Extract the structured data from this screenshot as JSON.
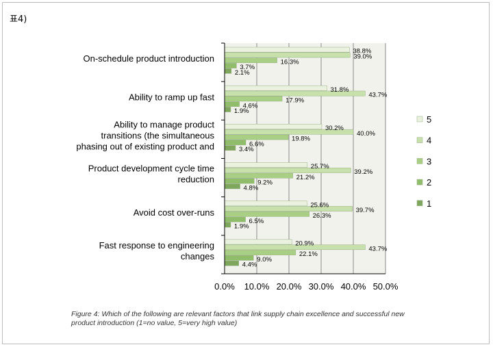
{
  "page": {
    "header_label": "표4)"
  },
  "figure": {
    "caption": "Figure 4: Which of the following are relevant factors that link supply chain excellence and successful new product introduction (1=no value, 5=very high value)"
  },
  "chart_data": {
    "type": "bar",
    "orientation": "horizontal",
    "categories": [
      [
        "On-schedule product introduction"
      ],
      [
        "Ability to ramp up fast"
      ],
      [
        "Ability to manage product",
        "transitions (the simultaneous",
        "phasing out of existing product and"
      ],
      [
        "Product development cycle time",
        "reduction"
      ],
      [
        "Avoid cost over-runs"
      ],
      [
        "Fast response to engineering",
        "changes"
      ]
    ],
    "series": [
      {
        "name": "5",
        "color": "#eaf2df",
        "values": [
          38.8,
          31.8,
          30.2,
          25.7,
          25.6,
          20.9
        ]
      },
      {
        "name": "4",
        "color": "#c8e0ac",
        "values": [
          39.0,
          43.7,
          40.0,
          39.2,
          39.7,
          43.7
        ]
      },
      {
        "name": "3",
        "color": "#a8cf83",
        "values": [
          16.3,
          17.9,
          19.8,
          21.2,
          26.3,
          22.1
        ]
      },
      {
        "name": "2",
        "color": "#8fbd69",
        "values": [
          3.7,
          4.6,
          6.6,
          9.2,
          6.5,
          9.0
        ]
      },
      {
        "name": "1",
        "color": "#7ea65c",
        "values": [
          2.1,
          1.9,
          3.4,
          4.8,
          1.9,
          4.4
        ]
      }
    ],
    "value_labels": [
      [
        "38.8%",
        "39.0%",
        "16.3%",
        "3.7%",
        "2.1%"
      ],
      [
        "31.8%",
        "43.7%",
        "17.9%",
        "4.6%",
        "1.9%"
      ],
      [
        "30.2%",
        "40.0%",
        "19.8%",
        "6.6%",
        "3.4%"
      ],
      [
        "25.7%",
        "39.2%",
        "21.2%",
        "9.2%",
        "4.8%"
      ],
      [
        "25.6%",
        "39.7%",
        "26.3%",
        "6.5%",
        "1.9%"
      ],
      [
        "20.9%",
        "43.7%",
        "22.1%",
        "9.0%",
        "4.4%"
      ]
    ],
    "xlim": [
      0,
      50
    ],
    "xticks": [
      "0.0%",
      "10.0%",
      "20.0%",
      "30.0%",
      "40.0%",
      "50.0%"
    ],
    "grid": true,
    "legend_position": "right",
    "legend_order": [
      "5",
      "4",
      "3",
      "2",
      "1"
    ],
    "plot_background": "#f2f2ec",
    "gridline_color": "#8a8a8a"
  }
}
